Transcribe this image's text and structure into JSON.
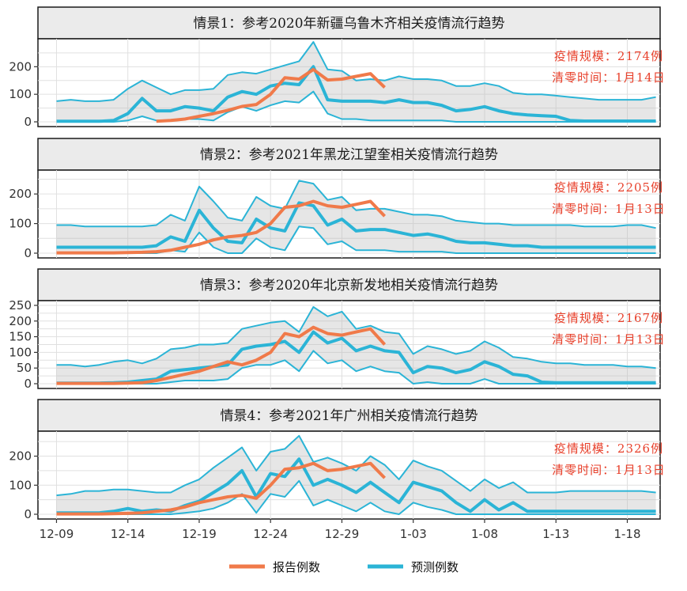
{
  "chart_data": {
    "type": "line",
    "x_axis": {
      "ticks": [
        "12-09",
        "12-14",
        "12-19",
        "12-24",
        "12-29",
        "1-03",
        "1-08",
        "1-13",
        "1-18"
      ]
    },
    "legend": [
      {
        "name": "报告例数",
        "color": "#f07a4a"
      },
      {
        "name": "预测例数",
        "color": "#2bb4d6"
      }
    ],
    "panels": [
      {
        "title": "情景1：参考2020年新疆乌鲁木齐相关疫情流行趋势",
        "annotation_scale": "疫情规模：2174例",
        "annotation_clear": "清零时间：1月14日",
        "ylim": [
          0,
          290
        ],
        "yticks": [
          0,
          100,
          200
        ],
        "reported": {
          "x": [
            "12-16",
            "12-17",
            "12-18",
            "12-19",
            "12-20",
            "12-21",
            "12-22",
            "12-23",
            "12-24",
            "12-25",
            "12-26",
            "12-27",
            "12-28",
            "12-29",
            "12-30",
            "12-31",
            "1-01"
          ],
          "y": [
            2,
            5,
            10,
            20,
            30,
            42,
            56,
            63,
            100,
            160,
            155,
            190,
            152,
            155,
            165,
            175,
            125
          ]
        },
        "predicted": {
          "x": [
            "12-09",
            "12-10",
            "12-11",
            "12-12",
            "12-13",
            "12-14",
            "12-15",
            "12-16",
            "12-17",
            "12-18",
            "12-19",
            "12-20",
            "12-21",
            "12-22",
            "12-23",
            "12-24",
            "12-25",
            "12-26",
            "12-27",
            "12-28",
            "12-29",
            "12-30",
            "12-31",
            "1-01",
            "1-02",
            "1-03",
            "1-04",
            "1-05",
            "1-06",
            "1-07",
            "1-08",
            "1-09",
            "1-10",
            "1-11",
            "1-12",
            "1-13",
            "1-14",
            "1-15",
            "1-16",
            "1-17",
            "1-18",
            "1-19",
            "1-20"
          ],
          "mean": [
            2,
            2,
            2,
            2,
            5,
            30,
            85,
            40,
            40,
            55,
            50,
            40,
            90,
            110,
            100,
            130,
            140,
            135,
            200,
            80,
            75,
            75,
            75,
            70,
            80,
            70,
            70,
            60,
            40,
            45,
            55,
            40,
            30,
            25,
            22,
            20,
            5,
            3,
            3,
            3,
            3,
            3,
            3
          ],
          "upper": [
            75,
            80,
            75,
            75,
            80,
            120,
            150,
            125,
            100,
            115,
            115,
            120,
            170,
            180,
            175,
            190,
            205,
            220,
            290,
            190,
            185,
            150,
            155,
            150,
            165,
            155,
            155,
            150,
            130,
            130,
            140,
            130,
            105,
            100,
            100,
            95,
            90,
            85,
            80,
            80,
            80,
            80,
            90
          ],
          "lower": [
            0,
            0,
            0,
            0,
            0,
            5,
            20,
            5,
            5,
            10,
            10,
            5,
            35,
            55,
            40,
            60,
            75,
            70,
            110,
            30,
            10,
            10,
            5,
            5,
            5,
            5,
            5,
            5,
            0,
            0,
            0,
            0,
            0,
            0,
            0,
            0,
            0,
            0,
            0,
            0,
            0,
            0,
            0
          ]
        }
      },
      {
        "title": "情景2：参考2021年黑龙江望奎相关疫情流行趋势",
        "annotation_scale": "疫情规模：2205例",
        "annotation_clear": "清零时间：1月13日",
        "ylim": [
          0,
          270
        ],
        "yticks": [
          0,
          100,
          200
        ],
        "reported": {
          "x": [
            "12-09",
            "12-10",
            "12-11",
            "12-12",
            "12-13",
            "12-14",
            "12-15",
            "12-16",
            "12-17",
            "12-18",
            "12-19",
            "12-20",
            "12-21",
            "12-22",
            "12-23",
            "12-24",
            "12-25",
            "12-26",
            "12-27",
            "12-28",
            "12-29",
            "12-30",
            "12-31",
            "1-01"
          ],
          "y": [
            1,
            1,
            1,
            1,
            1,
            2,
            3,
            5,
            10,
            20,
            30,
            45,
            55,
            60,
            70,
            100,
            155,
            160,
            175,
            160,
            155,
            165,
            175,
            125
          ]
        },
        "predicted": {
          "x": [
            "12-09",
            "12-10",
            "12-11",
            "12-12",
            "12-13",
            "12-14",
            "12-15",
            "12-16",
            "12-17",
            "12-18",
            "12-19",
            "12-20",
            "12-21",
            "12-22",
            "12-23",
            "12-24",
            "12-25",
            "12-26",
            "12-27",
            "12-28",
            "12-29",
            "12-30",
            "12-31",
            "1-01",
            "1-02",
            "1-03",
            "1-04",
            "1-05",
            "1-06",
            "1-07",
            "1-08",
            "1-09",
            "1-10",
            "1-11",
            "1-12",
            "1-13",
            "1-14",
            "1-15",
            "1-16",
            "1-17",
            "1-18",
            "1-19",
            "1-20"
          ],
          "mean": [
            20,
            20,
            20,
            20,
            20,
            20,
            20,
            25,
            55,
            40,
            145,
            85,
            40,
            35,
            115,
            85,
            75,
            170,
            160,
            95,
            115,
            75,
            80,
            80,
            70,
            60,
            65,
            55,
            40,
            35,
            35,
            30,
            25,
            25,
            20,
            20,
            20,
            20,
            20,
            20,
            20,
            20,
            20
          ],
          "upper": [
            95,
            95,
            90,
            90,
            90,
            90,
            90,
            95,
            130,
            110,
            225,
            175,
            120,
            110,
            190,
            160,
            150,
            245,
            235,
            180,
            190,
            145,
            150,
            150,
            140,
            130,
            130,
            125,
            110,
            105,
            100,
            100,
            95,
            95,
            95,
            95,
            95,
            90,
            90,
            90,
            95,
            95,
            85
          ],
          "lower": [
            0,
            0,
            0,
            0,
            0,
            0,
            0,
            0,
            10,
            5,
            70,
            20,
            0,
            0,
            50,
            20,
            10,
            90,
            85,
            30,
            40,
            10,
            10,
            10,
            5,
            5,
            5,
            5,
            0,
            0,
            0,
            0,
            0,
            0,
            0,
            0,
            0,
            0,
            0,
            0,
            0,
            0,
            0
          ]
        }
      },
      {
        "title": "情景3：参考2020年北京新发地相关疫情流行趋势",
        "annotation_scale": "疫情规模：2167例",
        "annotation_clear": "清零时间：1月13日",
        "ylim": [
          0,
          255
        ],
        "yticks": [
          0,
          50,
          100,
          150,
          200,
          250
        ],
        "reported": {
          "x": [
            "12-09",
            "12-10",
            "12-11",
            "12-12",
            "12-13",
            "12-14",
            "12-15",
            "12-16",
            "12-17",
            "12-18",
            "12-19",
            "12-20",
            "12-21",
            "12-22",
            "12-23",
            "12-24",
            "12-25",
            "12-26",
            "12-27",
            "12-28",
            "12-29",
            "12-30",
            "12-31",
            "1-01"
          ],
          "y": [
            1,
            1,
            1,
            1,
            1,
            2,
            3,
            10,
            20,
            30,
            40,
            55,
            70,
            60,
            75,
            100,
            160,
            150,
            180,
            160,
            155,
            165,
            175,
            125
          ]
        },
        "predicted": {
          "x": [
            "12-09",
            "12-10",
            "12-11",
            "12-12",
            "12-13",
            "12-14",
            "12-15",
            "12-16",
            "12-17",
            "12-18",
            "12-19",
            "12-20",
            "12-21",
            "12-22",
            "12-23",
            "12-24",
            "12-25",
            "12-26",
            "12-27",
            "12-28",
            "12-29",
            "12-30",
            "12-31",
            "1-01",
            "1-02",
            "1-03",
            "1-04",
            "1-05",
            "1-06",
            "1-07",
            "1-08",
            "1-09",
            "1-10",
            "1-11",
            "1-12",
            "1-13",
            "1-14",
            "1-15",
            "1-16",
            "1-17",
            "1-18",
            "1-19",
            "1-20"
          ],
          "mean": [
            2,
            2,
            2,
            2,
            3,
            5,
            10,
            15,
            40,
            45,
            50,
            55,
            60,
            110,
            120,
            125,
            135,
            100,
            165,
            130,
            145,
            105,
            120,
            105,
            100,
            35,
            55,
            50,
            35,
            45,
            70,
            55,
            30,
            25,
            5,
            3,
            3,
            3,
            3,
            3,
            3,
            3,
            3
          ],
          "upper": [
            60,
            60,
            55,
            60,
            70,
            75,
            65,
            80,
            110,
            115,
            125,
            125,
            130,
            175,
            185,
            195,
            200,
            165,
            245,
            215,
            230,
            175,
            185,
            165,
            160,
            95,
            120,
            110,
            95,
            105,
            135,
            115,
            85,
            80,
            70,
            65,
            65,
            60,
            60,
            60,
            55,
            55,
            50
          ],
          "lower": [
            0,
            0,
            0,
            0,
            0,
            0,
            0,
            0,
            5,
            10,
            10,
            10,
            15,
            50,
            60,
            60,
            75,
            40,
            105,
            65,
            75,
            40,
            55,
            40,
            35,
            0,
            5,
            0,
            0,
            0,
            15,
            0,
            0,
            0,
            0,
            0,
            0,
            0,
            0,
            0,
            0,
            0,
            0
          ]
        }
      },
      {
        "title": "情景4：参考2021年广州相关疫情流行趋势",
        "annotation_scale": "疫情规模：2326例",
        "annotation_clear": "清零时间：1月13日",
        "ylim": [
          0,
          275
        ],
        "yticks": [
          0,
          100,
          200
        ],
        "reported": {
          "x": [
            "12-09",
            "12-10",
            "12-11",
            "12-12",
            "12-13",
            "12-14",
            "12-15",
            "12-16",
            "12-17",
            "12-18",
            "12-19",
            "12-20",
            "12-21",
            "12-22",
            "12-23",
            "12-24",
            "12-25",
            "12-26",
            "12-27",
            "12-28",
            "12-29",
            "12-30",
            "12-31",
            "1-01"
          ],
          "y": [
            1,
            1,
            1,
            1,
            2,
            3,
            5,
            10,
            15,
            25,
            40,
            50,
            60,
            65,
            55,
            100,
            155,
            160,
            175,
            150,
            155,
            165,
            175,
            125
          ]
        },
        "predicted": {
          "x": [
            "12-09",
            "12-10",
            "12-11",
            "12-12",
            "12-13",
            "12-14",
            "12-15",
            "12-16",
            "12-17",
            "12-18",
            "12-19",
            "12-20",
            "12-21",
            "12-22",
            "12-23",
            "12-24",
            "12-25",
            "12-26",
            "12-27",
            "12-28",
            "12-29",
            "12-30",
            "12-31",
            "1-01",
            "1-02",
            "1-03",
            "1-04",
            "1-05",
            "1-06",
            "1-07",
            "1-08",
            "1-09",
            "1-10",
            "1-11",
            "1-12",
            "1-13",
            "1-14",
            "1-15",
            "1-16",
            "1-17",
            "1-18",
            "1-19",
            "1-20"
          ],
          "mean": [
            5,
            5,
            5,
            5,
            10,
            20,
            10,
            15,
            10,
            30,
            45,
            75,
            105,
            150,
            60,
            140,
            130,
            190,
            100,
            120,
            100,
            75,
            110,
            75,
            40,
            110,
            95,
            80,
            40,
            10,
            50,
            15,
            40,
            10,
            10,
            10,
            10,
            10,
            10,
            10,
            10,
            10,
            10
          ],
          "upper": [
            65,
            70,
            80,
            80,
            85,
            85,
            80,
            75,
            75,
            100,
            120,
            160,
            195,
            230,
            150,
            215,
            225,
            270,
            180,
            195,
            175,
            150,
            200,
            170,
            120,
            185,
            165,
            150,
            115,
            80,
            120,
            90,
            110,
            75,
            75,
            75,
            80,
            80,
            80,
            80,
            80,
            80,
            75
          ],
          "lower": [
            0,
            0,
            0,
            0,
            0,
            0,
            0,
            0,
            0,
            5,
            10,
            20,
            40,
            70,
            5,
            70,
            60,
            115,
            30,
            50,
            30,
            10,
            40,
            10,
            0,
            40,
            25,
            15,
            0,
            0,
            0,
            0,
            0,
            0,
            0,
            0,
            0,
            0,
            0,
            0,
            0,
            0,
            0
          ]
        }
      }
    ]
  }
}
